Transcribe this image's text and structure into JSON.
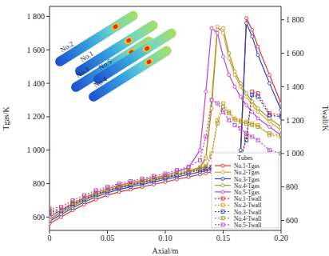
{
  "chart_data": {
    "type": "line",
    "x_label": "Axial/m",
    "y_label": "Tgas/K",
    "y2_label": "Twall/K",
    "legend_title": "Tubes",
    "legend": "lower right",
    "inset_labels": [
      "No.2",
      "No.1",
      "No.3",
      "No.5",
      "No.4"
    ],
    "x": [
      0,
      0.01,
      0.02,
      0.03,
      0.04,
      0.05,
      0.06,
      0.07,
      0.08,
      0.09,
      0.1,
      0.11,
      0.12,
      0.13,
      0.135,
      0.14,
      0.145,
      0.15,
      0.155,
      0.16,
      0.165,
      0.17,
      0.175,
      0.18,
      0.19,
      0.2
    ],
    "xlim": [
      0,
      0.2
    ],
    "xticks": [
      0,
      {
        "value": 0.05,
        "label": "0.05"
      },
      {
        "value": 0.1,
        "label": "0.10"
      },
      {
        "value": 0.15,
        "label": "0.15"
      },
      {
        "value": 0.2,
        "label": "0.20"
      }
    ],
    "ylim": [
      520,
      1860
    ],
    "yticks": [
      600,
      800,
      {
        "value": 1000,
        "label": "1 000"
      },
      {
        "value": 1200,
        "label": "1 200"
      },
      {
        "value": 1400,
        "label": "1 400"
      },
      {
        "value": 1600,
        "label": "1 600"
      },
      {
        "value": 1800,
        "label": "1 800"
      }
    ],
    "y2lim": [
      540,
      1880
    ],
    "y2ticks": [
      600,
      800,
      {
        "value": 1000,
        "label": "1 000"
      },
      {
        "value": 1200,
        "label": "1 200"
      },
      {
        "value": 1400,
        "label": "1 400"
      },
      {
        "value": 1600,
        "label": "1 600"
      },
      {
        "value": 1800,
        "label": "1 800"
      }
    ],
    "series": [
      {
        "name": "No.1-Tgas",
        "color": "#e03030",
        "line_style": "solid",
        "marker": "circle",
        "values": [
          560,
          600,
          640,
          675,
          705,
          730,
          750,
          765,
          780,
          795,
          810,
          825,
          840,
          855,
          862,
          870,
          878,
          890,
          900,
          915,
          940,
          1790,
          1720,
          1620,
          1450,
          1280
        ]
      },
      {
        "name": "No.2-Tgas",
        "color": "#e0a020",
        "line_style": "solid",
        "marker": "circle",
        "values": [
          590,
          630,
          670,
          705,
          735,
          760,
          780,
          795,
          810,
          825,
          840,
          855,
          875,
          900,
          960,
          1300,
          1740,
          1700,
          1550,
          1450,
          1380,
          1320,
          1270,
          1230,
          1170,
          1120
        ]
      },
      {
        "name": "No.3-Tgas",
        "color": "#2040c0",
        "line_style": "solid",
        "marker": "circle",
        "values": [
          575,
          615,
          655,
          690,
          720,
          745,
          765,
          780,
          795,
          810,
          825,
          840,
          855,
          870,
          877,
          885,
          893,
          905,
          915,
          930,
          1000,
          1760,
          1680,
          1570,
          1400,
          1240
        ]
      },
      {
        "name": "No.4-Tgas",
        "color": "#a09a30",
        "line_style": "solid",
        "marker": "circle",
        "values": [
          585,
          625,
          665,
          700,
          730,
          755,
          775,
          790,
          805,
          820,
          835,
          850,
          870,
          895,
          950,
          1250,
          1720,
          1730,
          1580,
          1470,
          1400,
          1340,
          1290,
          1250,
          1190,
          1140
        ]
      },
      {
        "name": "No.5-Tgas",
        "color": "#c040d0",
        "line_style": "solid",
        "marker": "circle",
        "values": [
          600,
          640,
          680,
          715,
          745,
          770,
          790,
          805,
          820,
          835,
          850,
          870,
          895,
          1000,
          1350,
          1730,
          1700,
          1560,
          1450,
          1380,
          1320,
          1270,
          1230,
          1190,
          1140,
          1090
        ]
      },
      {
        "name": "No.1-Twall",
        "color": "#e03030",
        "line_style": "dotted",
        "marker": "square",
        "axis": "y2",
        "values": [
          650,
          660,
          700,
          730,
          760,
          780,
          800,
          815,
          830,
          845,
          860,
          875,
          890,
          905,
          912,
          920,
          928,
          935,
          945,
          955,
          970,
          1100,
          1370,
          1360,
          1240,
          1230
        ]
      },
      {
        "name": "No.2-Twall",
        "color": "#e0a020",
        "line_style": "dotted",
        "marker": "square",
        "axis": "y2",
        "values": [
          660,
          670,
          710,
          740,
          770,
          790,
          810,
          825,
          840,
          855,
          870,
          885,
          900,
          915,
          925,
          1000,
          1200,
          1300,
          1250,
          1210,
          1200,
          1190,
          1180,
          1170,
          1110,
          1100
        ]
      },
      {
        "name": "No.3-Twall",
        "color": "#2040c0",
        "line_style": "dotted",
        "marker": "square",
        "axis": "y2",
        "values": [
          640,
          655,
          695,
          725,
          755,
          775,
          795,
          810,
          825,
          840,
          855,
          870,
          885,
          900,
          907,
          915,
          922,
          930,
          940,
          950,
          965,
          1080,
          1350,
          1340,
          1230,
          1220
        ]
      },
      {
        "name": "No.4-Twall",
        "color": "#a09a30",
        "line_style": "dotted",
        "marker": "square",
        "axis": "y2",
        "values": [
          655,
          665,
          705,
          735,
          765,
          785,
          805,
          820,
          835,
          850,
          865,
          880,
          895,
          910,
          920,
          980,
          1180,
          1280,
          1240,
          1200,
          1190,
          1180,
          1170,
          1160,
          1120,
          1110
        ]
      },
      {
        "name": "No.5-Twall",
        "color": "#c040d0",
        "line_style": "dotted",
        "marker": "square",
        "axis": "y2",
        "values": [
          670,
          680,
          720,
          750,
          780,
          800,
          820,
          835,
          850,
          865,
          880,
          900,
          920,
          960,
          1100,
          1320,
          1300,
          1250,
          1200,
          1170,
          1150,
          1120,
          1100,
          1080,
          1020,
          1000
        ]
      }
    ]
  }
}
